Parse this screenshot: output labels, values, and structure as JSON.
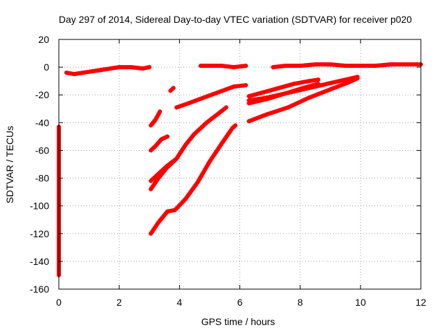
{
  "chart_data": {
    "type": "scatter",
    "title": "Day 297 of 2014, Sidereal Day-to-day VTEC variation (SDTVAR) for receiver p020",
    "xlabel": "GPS time / hours",
    "ylabel": "SDTVAR / TECUs",
    "xlim": [
      0,
      12
    ],
    "ylim": [
      -160,
      20
    ],
    "xticks": [
      0,
      2,
      4,
      6,
      8,
      10,
      12
    ],
    "yticks": [
      -160,
      -140,
      -120,
      -100,
      -80,
      -60,
      -40,
      -20,
      0,
      20
    ],
    "grid": true,
    "marker": "+",
    "color": "#ff0000",
    "series": [
      {
        "name": "arc-near-zero-1",
        "points": [
          [
            0.25,
            -4
          ],
          [
            0.5,
            -5
          ],
          [
            0.8,
            -4
          ],
          [
            1.1,
            -3
          ],
          [
            1.4,
            -2
          ],
          [
            1.7,
            -1
          ],
          [
            2.0,
            0
          ],
          [
            2.4,
            0
          ],
          [
            2.8,
            -1
          ],
          [
            3.0,
            0
          ]
        ]
      },
      {
        "name": "arc-near-zero-2",
        "points": [
          [
            4.7,
            1
          ],
          [
            5.0,
            1
          ],
          [
            5.4,
            1
          ],
          [
            5.8,
            0
          ],
          [
            6.2,
            1
          ]
        ]
      },
      {
        "name": "arc-near-zero-3",
        "points": [
          [
            7.1,
            0
          ],
          [
            7.5,
            1
          ],
          [
            8.0,
            1
          ],
          [
            8.5,
            2
          ],
          [
            9.0,
            2
          ],
          [
            9.5,
            1
          ],
          [
            10.0,
            1
          ],
          [
            10.5,
            1
          ],
          [
            11.0,
            2
          ],
          [
            11.5,
            2
          ],
          [
            12.0,
            2
          ]
        ]
      },
      {
        "name": "rising-arc-a",
        "points": [
          [
            3.05,
            -42
          ],
          [
            3.2,
            -38
          ],
          [
            3.35,
            -32
          ]
        ]
      },
      {
        "name": "isolated-short",
        "points": [
          [
            3.7,
            -17
          ],
          [
            3.8,
            -15
          ]
        ]
      },
      {
        "name": "rising-arc-b",
        "points": [
          [
            3.9,
            -29
          ],
          [
            4.3,
            -26
          ],
          [
            4.8,
            -22
          ],
          [
            5.3,
            -18
          ],
          [
            5.8,
            -14
          ],
          [
            6.2,
            -13
          ]
        ]
      },
      {
        "name": "rising-arc-c",
        "points": [
          [
            3.05,
            -60
          ],
          [
            3.2,
            -57
          ],
          [
            3.4,
            -52
          ],
          [
            3.6,
            -50
          ]
        ]
      },
      {
        "name": "rising-arc-d",
        "points": [
          [
            3.05,
            -82
          ],
          [
            3.3,
            -77
          ],
          [
            3.6,
            -71
          ],
          [
            3.9,
            -66
          ],
          [
            4.2,
            -56
          ],
          [
            4.5,
            -48
          ],
          [
            4.9,
            -40
          ],
          [
            5.2,
            -35
          ],
          [
            5.55,
            -29
          ]
        ]
      },
      {
        "name": "rising-arc-e",
        "points": [
          [
            3.05,
            -88
          ],
          [
            3.3,
            -80
          ],
          [
            3.6,
            -72
          ],
          [
            3.85,
            -67
          ]
        ]
      },
      {
        "name": "rising-arc-f",
        "points": [
          [
            3.05,
            -120
          ],
          [
            3.3,
            -112
          ],
          [
            3.6,
            -104
          ],
          [
            3.85,
            -103
          ],
          [
            4.2,
            -95
          ],
          [
            4.6,
            -83
          ],
          [
            5.0,
            -68
          ],
          [
            5.4,
            -55
          ],
          [
            5.75,
            -44
          ],
          [
            5.85,
            -42
          ]
        ]
      },
      {
        "name": "rising-arc-g",
        "points": [
          [
            6.3,
            -21
          ],
          [
            6.8,
            -18
          ],
          [
            7.3,
            -15
          ],
          [
            7.8,
            -12
          ],
          [
            8.3,
            -10
          ],
          [
            8.6,
            -9
          ]
        ]
      },
      {
        "name": "rising-arc-h",
        "points": [
          [
            6.3,
            -26
          ],
          [
            6.9,
            -23
          ],
          [
            7.5,
            -19
          ],
          [
            8.1,
            -16
          ],
          [
            8.7,
            -13
          ],
          [
            9.3,
            -10
          ],
          [
            9.9,
            -7
          ]
        ]
      },
      {
        "name": "rising-arc-i",
        "points": [
          [
            6.3,
            -39
          ],
          [
            6.9,
            -34
          ],
          [
            7.6,
            -29
          ],
          [
            8.3,
            -22
          ],
          [
            9.0,
            -16
          ],
          [
            9.6,
            -11
          ],
          [
            9.9,
            -8
          ]
        ]
      },
      {
        "name": "rising-arc-j",
        "points": [
          [
            6.3,
            -24
          ],
          [
            6.9,
            -22
          ],
          [
            7.5,
            -19
          ],
          [
            8.1,
            -15
          ],
          [
            8.6,
            -12
          ]
        ]
      },
      {
        "name": "left-edge-outliers",
        "points": [
          [
            0.0,
            -43
          ],
          [
            0.0,
            -75
          ],
          [
            0.0,
            -137
          ],
          [
            0.0,
            -150
          ]
        ]
      }
    ]
  }
}
